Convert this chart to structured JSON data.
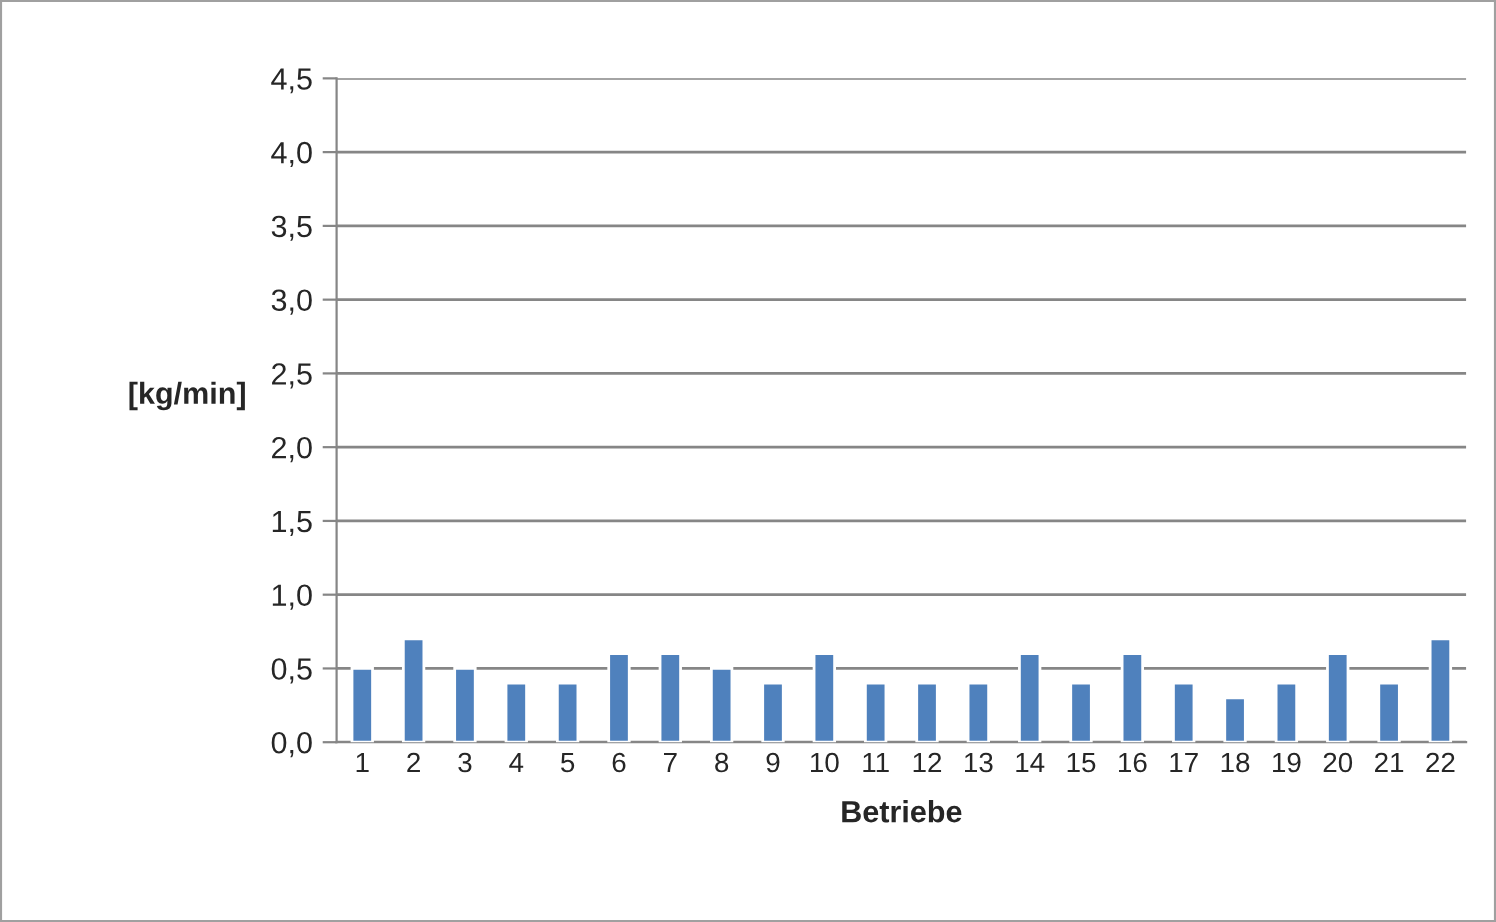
{
  "chart_data": {
    "type": "bar",
    "xlabel": "Betriebe",
    "ylabel": "[kg/min]",
    "categories": [
      "1",
      "2",
      "3",
      "4",
      "5",
      "6",
      "7",
      "8",
      "9",
      "10",
      "11",
      "12",
      "13",
      "14",
      "15",
      "16",
      "17",
      "18",
      "19",
      "20",
      "21",
      "22"
    ],
    "values": [
      0.5,
      0.7,
      0.5,
      0.4,
      0.4,
      0.6,
      0.6,
      0.5,
      0.4,
      0.6,
      0.4,
      0.4,
      0.4,
      0.6,
      0.4,
      0.6,
      0.4,
      0.3,
      0.4,
      0.6,
      0.4,
      0.7
    ],
    "color": "#4f81bd",
    "ylim": [
      0,
      4.5
    ],
    "yticks": [
      {
        "value": 0,
        "label": "0,0"
      },
      {
        "value": 0.5,
        "label": "0,5"
      },
      {
        "value": 1,
        "label": "1,0"
      },
      {
        "value": 1.5,
        "label": "1,5"
      },
      {
        "value": 2,
        "label": "2,0"
      },
      {
        "value": 2.5,
        "label": "2,5"
      },
      {
        "value": 3,
        "label": "3,0"
      },
      {
        "value": 3.5,
        "label": "3,5"
      },
      {
        "value": 4,
        "label": "4,0"
      },
      {
        "value": 4.5,
        "label": "4,5"
      }
    ],
    "grid": "y"
  }
}
